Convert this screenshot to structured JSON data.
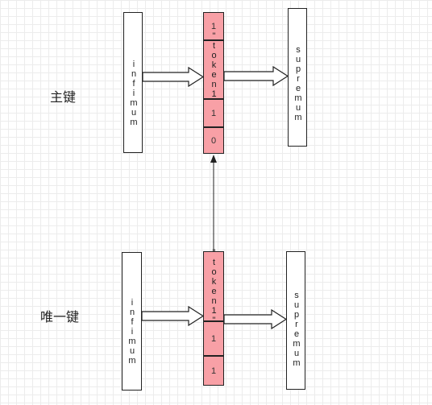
{
  "primary_key": {
    "label": "主键",
    "infimum": "infimum",
    "supremum": "supremum",
    "cells": [
      "1",
      "\"token1\"",
      "1",
      "0"
    ]
  },
  "unique_key": {
    "label": "唯一键",
    "infimum": "infimum",
    "supremum": "supremum",
    "cells": [
      "\"token1\"",
      "1",
      "1"
    ]
  }
}
